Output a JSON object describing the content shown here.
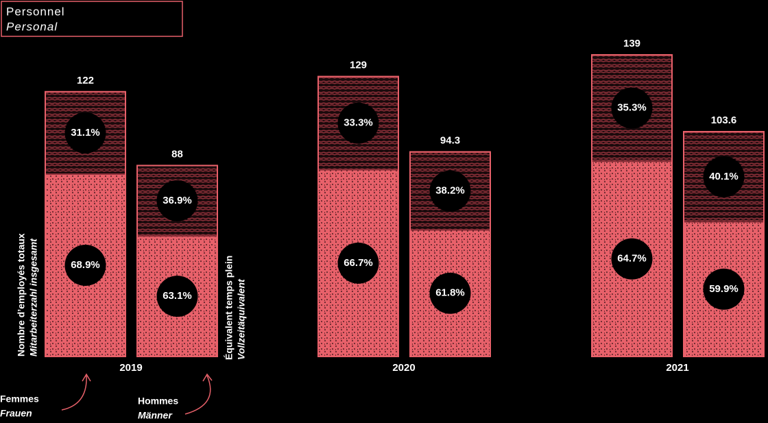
{
  "chart_data": {
    "type": "bar",
    "title": "Personnel",
    "subtitle": "Personal",
    "categories": [
      "2019",
      "2020",
      "2021"
    ],
    "bars": [
      {
        "name": "Nombre d’employés totaux",
        "name_de": "Mitarbeiterzahl insgesamt",
        "totals": [
          122,
          129,
          139
        ],
        "series": [
          {
            "name": "Femmes",
            "name_de": "Frauen",
            "color": "#e8616a",
            "values": [
              68.9,
              66.7,
              64.7
            ],
            "value_labels": [
              "68.9%",
              "66.7%",
              "64.7%"
            ]
          },
          {
            "name": "Hommes",
            "name_de": "Männer",
            "color": "#8a2f38",
            "values": [
              31.1,
              33.3,
              35.3
            ],
            "value_labels": [
              "31.1%",
              "33.3%",
              "35.3%"
            ]
          }
        ]
      },
      {
        "name": "Équivalent temps plein",
        "name_de": "Vollzeitäquivalent",
        "totals": [
          88,
          94.3,
          103.6
        ],
        "series": [
          {
            "name": "Femmes",
            "name_de": "Frauen",
            "color": "#e8616a",
            "values": [
              63.1,
              61.8,
              59.9
            ],
            "value_labels": [
              "63.1%",
              "61.8%",
              "59.9%"
            ]
          },
          {
            "name": "Hommes",
            "name_de": "Männer",
            "color": "#8a2f38",
            "values": [
              36.9,
              38.2,
              40.1
            ],
            "value_labels": [
              "36.9%",
              "38.2%",
              "40.1%"
            ]
          }
        ]
      }
    ]
  }
}
